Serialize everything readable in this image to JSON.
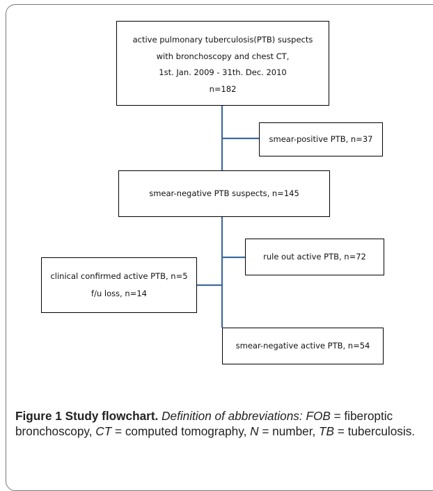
{
  "boxes": {
    "main": {
      "lines": [
        "active pulmonary tuberculosis(PTB) suspects",
        "with bronchoscopy and chest CT,",
        "1st. Jan. 2009 - 31th. Dec. 2010",
        "n=182"
      ]
    },
    "smear_positive": {
      "text": "smear-positive PTB, n=37"
    },
    "smear_negative_suspects": {
      "text": "smear-negative PTB suspects, n=145"
    },
    "rule_out": {
      "text": "rule out active PTB, n=72"
    },
    "clinical": {
      "lines": [
        "clinical confirmed active PTB, n=5",
        "f/u loss, n=14"
      ]
    },
    "smear_negative_active": {
      "text": "smear-negative active PTB, n=54"
    }
  },
  "colors": {
    "connector": "#3e6aa0",
    "box_border": "#000000"
  },
  "caption": {
    "label": "Figure 1 Study flowchart.",
    "abbrev_intro": "Definition of abbreviations:",
    "entries": [
      {
        "abbr": "FOB",
        "def": "fiberoptic bronchoscopy"
      },
      {
        "abbr": "CT",
        "def": "computed tomography"
      },
      {
        "abbr": "N",
        "def": "number"
      },
      {
        "abbr": "TB",
        "def": "tuberculosis."
      }
    ]
  }
}
